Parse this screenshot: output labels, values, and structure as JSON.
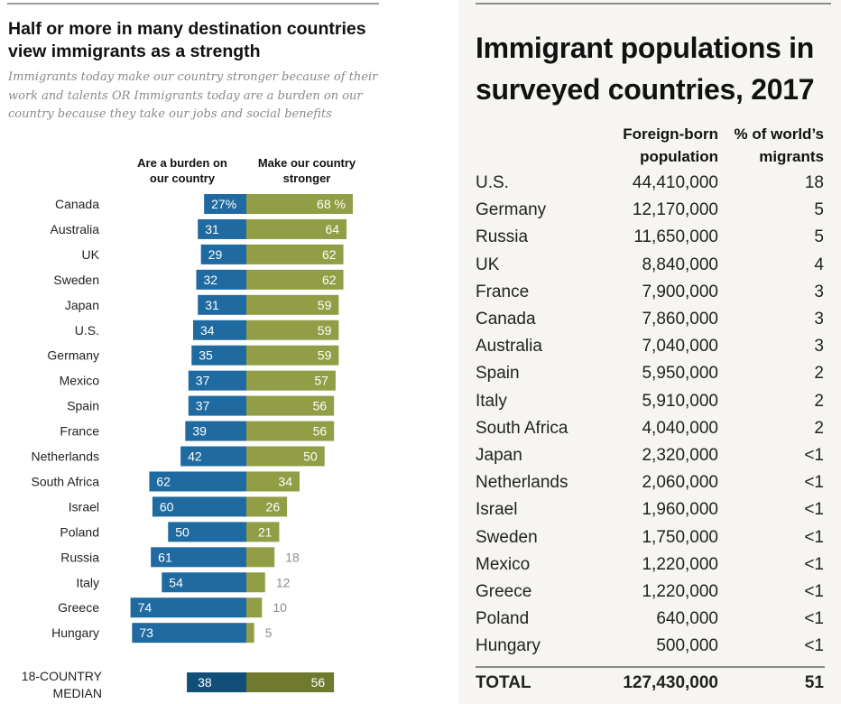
{
  "left_panel": {
    "title": "Half or more in many destination countries view immigrants as a strength",
    "subtitle": "Immigrants today make our country stronger because of their work and talents OR Immigrants today are a burden on our country because they take our jobs and social benefits",
    "col_burden": "Are a burden on our country",
    "col_stronger": "Make our country stronger"
  },
  "right_panel": {
    "title": "Immigrant populations in surveyed countries, 2017",
    "col_population": "Foreign-born population",
    "col_share": "% of world’s migrants",
    "rows": [
      {
        "country": "U.S.",
        "population": "44,410,000",
        "share": "18"
      },
      {
        "country": "Germany",
        "population": "12,170,000",
        "share": "5"
      },
      {
        "country": "Russia",
        "population": "11,650,000",
        "share": "5"
      },
      {
        "country": "UK",
        "population": "8,840,000",
        "share": "4"
      },
      {
        "country": "France",
        "population": "7,900,000",
        "share": "3"
      },
      {
        "country": "Canada",
        "population": "7,860,000",
        "share": "3"
      },
      {
        "country": "Australia",
        "population": "7,040,000",
        "share": "3"
      },
      {
        "country": "Spain",
        "population": "5,950,000",
        "share": "2"
      },
      {
        "country": "Italy",
        "population": "5,910,000",
        "share": "2"
      },
      {
        "country": "South Africa",
        "population": "4,040,000",
        "share": "2"
      },
      {
        "country": "Japan",
        "population": "2,320,000",
        "share": "<1"
      },
      {
        "country": "Netherlands",
        "population": "2,060,000",
        "share": "<1"
      },
      {
        "country": "Israel",
        "population": "1,960,000",
        "share": "<1"
      },
      {
        "country": "Sweden",
        "population": "1,750,000",
        "share": "<1"
      },
      {
        "country": "Mexico",
        "population": "1,220,000",
        "share": "<1"
      },
      {
        "country": "Greece",
        "population": "1,220,000",
        "share": "<1"
      },
      {
        "country": "Poland",
        "population": "640,000",
        "share": "<1"
      },
      {
        "country": "Hungary",
        "population": "500,000",
        "share": "<1"
      }
    ],
    "total": {
      "country": "TOTAL",
      "population": "127,430,000",
      "share": "51"
    }
  },
  "chart_data": [
    {
      "type": "bar",
      "orientation": "diverging-horizontal",
      "title": "Half or more in many destination countries view immigrants as a strength",
      "subtitle": "Immigrants today make our country stronger because of their work and talents OR Immigrants today are a burden on our country because they take our jobs and social benefits",
      "categories": [
        "Canada",
        "Australia",
        "UK",
        "Sweden",
        "Japan",
        "U.S.",
        "Germany",
        "Mexico",
        "Spain",
        "France",
        "Netherlands",
        "South Africa",
        "Israel",
        "Poland",
        "Russia",
        "Italy",
        "Greece",
        "Hungary"
      ],
      "series": [
        {
          "name": "Are a burden on our country",
          "color": "#1f6aa0",
          "values": [
            27,
            31,
            29,
            32,
            31,
            34,
            35,
            37,
            37,
            39,
            42,
            62,
            60,
            50,
            61,
            54,
            74,
            73
          ]
        },
        {
          "name": "Make our country stronger",
          "color": "#929e45",
          "values": [
            68,
            64,
            62,
            62,
            59,
            59,
            59,
            57,
            56,
            56,
            50,
            34,
            26,
            21,
            18,
            12,
            10,
            5
          ]
        }
      ],
      "first_row_suffix": "%",
      "median": {
        "label": "18-COUNTRY MEDIAN",
        "burden": 38,
        "stronger": 56,
        "burden_color": "#114e78",
        "stronger_color": "#6f7a2f"
      },
      "value_range": [
        0,
        80
      ],
      "grid": false,
      "legend": "top (column headers)"
    },
    {
      "type": "table",
      "title": "Immigrant populations in surveyed countries, 2017",
      "columns": [
        "",
        "Foreign-born population",
        "% of world’s migrants"
      ],
      "rows": [
        [
          "U.S.",
          44410000,
          "18"
        ],
        [
          "Germany",
          12170000,
          "5"
        ],
        [
          "Russia",
          11650000,
          "5"
        ],
        [
          "UK",
          8840000,
          "4"
        ],
        [
          "France",
          7900000,
          "3"
        ],
        [
          "Canada",
          7860000,
          "3"
        ],
        [
          "Australia",
          7040000,
          "3"
        ],
        [
          "Spain",
          5950000,
          "2"
        ],
        [
          "Italy",
          5910000,
          "2"
        ],
        [
          "South Africa",
          4040000,
          "2"
        ],
        [
          "Japan",
          2320000,
          "<1"
        ],
        [
          "Netherlands",
          2060000,
          "<1"
        ],
        [
          "Israel",
          1960000,
          "<1"
        ],
        [
          "Sweden",
          1750000,
          "<1"
        ],
        [
          "Mexico",
          1220000,
          "<1"
        ],
        [
          "Greece",
          1220000,
          "<1"
        ],
        [
          "Poland",
          640000,
          "<1"
        ],
        [
          "Hungary",
          500000,
          "<1"
        ]
      ],
      "total": [
        "TOTAL",
        127430000,
        "51"
      ]
    }
  ]
}
